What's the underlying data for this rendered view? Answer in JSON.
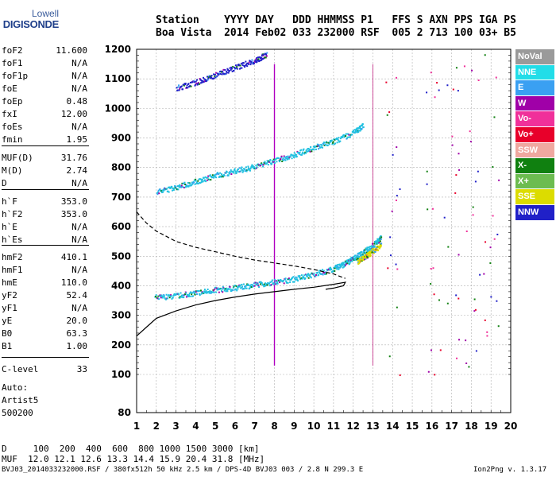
{
  "logo": {
    "line1": "Lowell",
    "line2": "DIGISONDE"
  },
  "header": {
    "row1": "Station    YYYY DAY   DDD HHMMSS P1   FFS S AXN PPS IGA PS",
    "row2": "Boa Vista  2014 Feb02 033 232000 RSF  005 2 713 100 03+ B5"
  },
  "params": [
    {
      "name": "foF2",
      "value": "11.600"
    },
    {
      "name": "foF1",
      "value": "N/A"
    },
    {
      "name": "foF1p",
      "value": "N/A"
    },
    {
      "name": "foE",
      "value": "N/A"
    },
    {
      "name": "foEp",
      "value": "0.48"
    },
    {
      "name": "fxI",
      "value": "12.00"
    },
    {
      "name": "foEs",
      "value": "N/A"
    },
    {
      "name": "fmin",
      "value": "1.95"
    },
    {
      "name": "MUF(D)",
      "value": "31.76"
    },
    {
      "name": "M(D)",
      "value": "2.74"
    },
    {
      "name": "D",
      "value": "N/A"
    },
    {
      "name": "h`F",
      "value": "353.0"
    },
    {
      "name": "h`F2",
      "value": "353.0"
    },
    {
      "name": "h`E",
      "value": "N/A"
    },
    {
      "name": "h`Es",
      "value": "N/A"
    },
    {
      "name": "hmF2",
      "value": "410.1"
    },
    {
      "name": "hmF1",
      "value": "N/A"
    },
    {
      "name": "hmE",
      "value": "110.0"
    },
    {
      "name": "yF2",
      "value": "52.4"
    },
    {
      "name": "yF1",
      "value": "N/A"
    },
    {
      "name": "yE",
      "value": "20.0"
    },
    {
      "name": "B0",
      "value": "63.3"
    },
    {
      "name": "B1",
      "value": "1.00"
    },
    {
      "name": "C-level",
      "value": "33"
    }
  ],
  "auto": {
    "line1": "Auto:",
    "line2": "Artist5",
    "line3": "500200"
  },
  "legend": [
    {
      "label": "NoVal",
      "color": "#9a9a9a"
    },
    {
      "label": "NNE",
      "color": "#22dde8"
    },
    {
      "label": "E",
      "color": "#3aa0f2"
    },
    {
      "label": "W",
      "color": "#a000a8"
    },
    {
      "label": "Vo-",
      "color": "#f0309a"
    },
    {
      "label": "Vo+",
      "color": "#e8002a"
    },
    {
      "label": "SSW",
      "color": "#f0a8a0"
    },
    {
      "label": "X-",
      "color": "#108010"
    },
    {
      "label": "X+",
      "color": "#6cbc50"
    },
    {
      "label": "SSE",
      "color": "#dcdc00"
    },
    {
      "label": "NNW",
      "color": "#2020c8"
    }
  ],
  "muf_table": {
    "d_row": "D     100  200  400  600  800 1000 1500 3000 [km]",
    "muf_row": "MUF  12.0 12.1 12.6 13.3 14.4 15.9 20.4 31.8 [MHz]"
  },
  "footer": {
    "left": "BVJ03_2014033232000.RSF / 380fx512h 50 kHz 2.5 km / DPS-4D BVJ03 003 / 2.8 N 299.3 E",
    "right": "Ion2Png v. 1.3.17"
  },
  "chart_data": {
    "type": "scatter",
    "x_ticks": [
      1,
      2,
      3,
      4,
      5,
      6,
      7,
      8,
      9,
      10,
      11,
      12,
      13,
      14,
      15,
      16,
      17,
      18,
      19,
      20
    ],
    "y_ticks": [
      80,
      100,
      200,
      300,
      400,
      500,
      600,
      700,
      800,
      900,
      1000,
      1100,
      1200
    ],
    "xlim": [
      1,
      20
    ],
    "ylim": [
      80,
      1200
    ],
    "grid": true,
    "legend_position": "right",
    "traces": [
      {
        "name": "O-trace F2",
        "color": "#20c0e0",
        "x": [
          1.9,
          3,
          4,
          5,
          6,
          7,
          8,
          9,
          10,
          11,
          11.6,
          12,
          12.5,
          13,
          13.4
        ],
        "y": [
          362,
          368,
          378,
          388,
          395,
          405,
          415,
          425,
          440,
          460,
          478,
          495,
          515,
          540,
          565
        ]
      },
      {
        "name": "X-trace F2",
        "color": "#dcdc00",
        "x": [
          12.2,
          12.6,
          13,
          13.4
        ],
        "y": [
          485,
          500,
          520,
          540
        ]
      },
      {
        "name": "2nd hop",
        "color": "#20c0e0",
        "x": [
          2,
          3,
          4,
          5,
          6,
          7,
          8,
          9,
          10,
          11,
          12,
          12.5
        ],
        "y": [
          718,
          735,
          755,
          775,
          790,
          805,
          825,
          845,
          870,
          890,
          920,
          945
        ]
      },
      {
        "name": "3rd hop",
        "color": "#2020c8",
        "x": [
          3,
          4,
          5,
          6,
          7,
          7.6
        ],
        "y": [
          1070,
          1090,
          1115,
          1140,
          1165,
          1185
        ]
      }
    ],
    "profile_solid": {
      "x": [
        1,
        1.5,
        2,
        3,
        4,
        5,
        6,
        7,
        8,
        9,
        10,
        11,
        11.6,
        11.5,
        11.0,
        10.6
      ],
      "y": [
        230,
        260,
        290,
        315,
        335,
        350,
        362,
        372,
        380,
        388,
        395,
        405,
        412,
        400,
        392,
        388
      ]
    },
    "profile_dashed": {
      "x": [
        1,
        1.5,
        2,
        3,
        4,
        5,
        6,
        7,
        8,
        9,
        10,
        11,
        11.6
      ],
      "y": [
        650,
        612,
        585,
        550,
        530,
        515,
        500,
        487,
        477,
        467,
        455,
        440,
        425
      ]
    }
  }
}
